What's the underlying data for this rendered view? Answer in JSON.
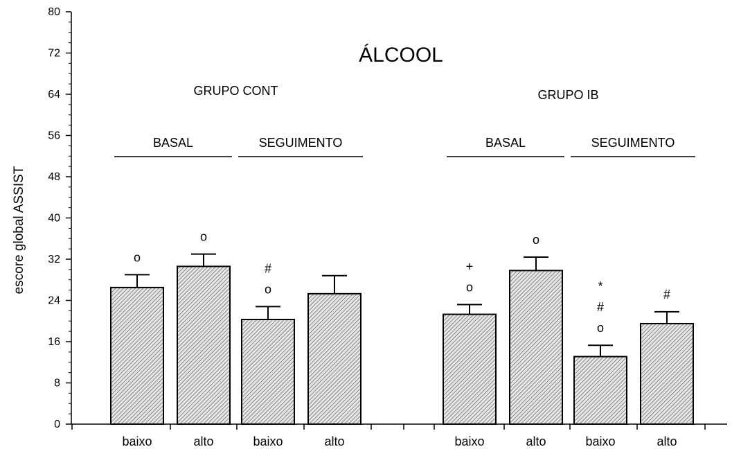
{
  "chart_data": {
    "type": "bar",
    "title": "ÁLCOOL",
    "ylabel": "escore global ASSIST",
    "xlabel": "",
    "ylim": [
      0,
      80
    ],
    "yticks": [
      "0",
      "8",
      "16",
      "24",
      "32",
      "40",
      "48",
      "56",
      "64",
      "72",
      "80"
    ],
    "grid": false,
    "groups": [
      {
        "label": "GRUPO CONT",
        "phases": [
          {
            "label": "BASAL",
            "bars": [
              {
                "category": "baixo",
                "value": 26.5,
                "error": 2.5,
                "marks": [
                  "o"
                ]
              },
              {
                "category": "alto",
                "value": 30.6,
                "error": 2.4,
                "marks": [
                  "o"
                ]
              }
            ]
          },
          {
            "label": "SEGUIMENTO",
            "bars": [
              {
                "category": "baixo",
                "value": 20.3,
                "error": 2.5,
                "marks": [
                  "#",
                  "o"
                ]
              },
              {
                "category": "alto",
                "value": 25.3,
                "error": 3.5,
                "marks": []
              }
            ]
          }
        ]
      },
      {
        "label": "GRUPO IB",
        "phases": [
          {
            "label": "BASAL",
            "bars": [
              {
                "category": "baixo",
                "value": 21.3,
                "error": 1.9,
                "marks": [
                  "+",
                  "o"
                ]
              },
              {
                "category": "alto",
                "value": 29.8,
                "error": 2.6,
                "marks": [
                  "o"
                ]
              }
            ]
          },
          {
            "label": "SEGUIMENTO",
            "bars": [
              {
                "category": "baixo",
                "value": 13.1,
                "error": 2.2,
                "marks": [
                  "*",
                  "#",
                  "o"
                ]
              },
              {
                "category": "alto",
                "value": 19.5,
                "error": 2.3,
                "marks": [
                  "#"
                ]
              }
            ]
          }
        ]
      }
    ]
  }
}
